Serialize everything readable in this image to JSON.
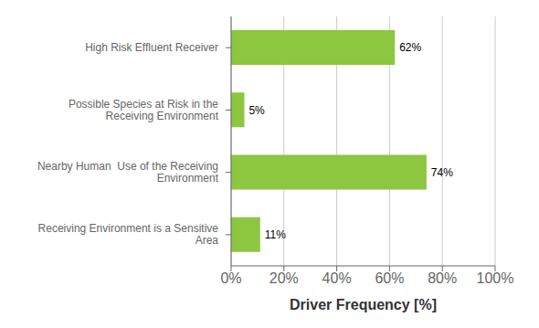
{
  "chart_data": {
    "type": "bar",
    "orientation": "horizontal",
    "categories": [
      "High Risk Effluent Receiver",
      "Possible Species at Risk in the\nReceiving Environment",
      "Nearby Human  Use of the Receiving\nEnvironment",
      "Receiving Environment is a Sensitive\nArea"
    ],
    "values": [
      62,
      5,
      74,
      11
    ],
    "value_labels": [
      "62%",
      "5%",
      "74%",
      "11%"
    ],
    "color": "#8DC63F",
    "xlabel": "Driver Frequency [%]",
    "xlim": [
      0,
      100
    ],
    "xticks": [
      {
        "value": 0,
        "label": "0%"
      },
      {
        "value": 20,
        "label": "20%"
      },
      {
        "value": 40,
        "label": "40%"
      },
      {
        "value": 60,
        "label": "60%"
      },
      {
        "value": 80,
        "label": "80%"
      },
      {
        "value": 100,
        "label": "100%"
      }
    ],
    "grid": true,
    "data_labels": true
  }
}
